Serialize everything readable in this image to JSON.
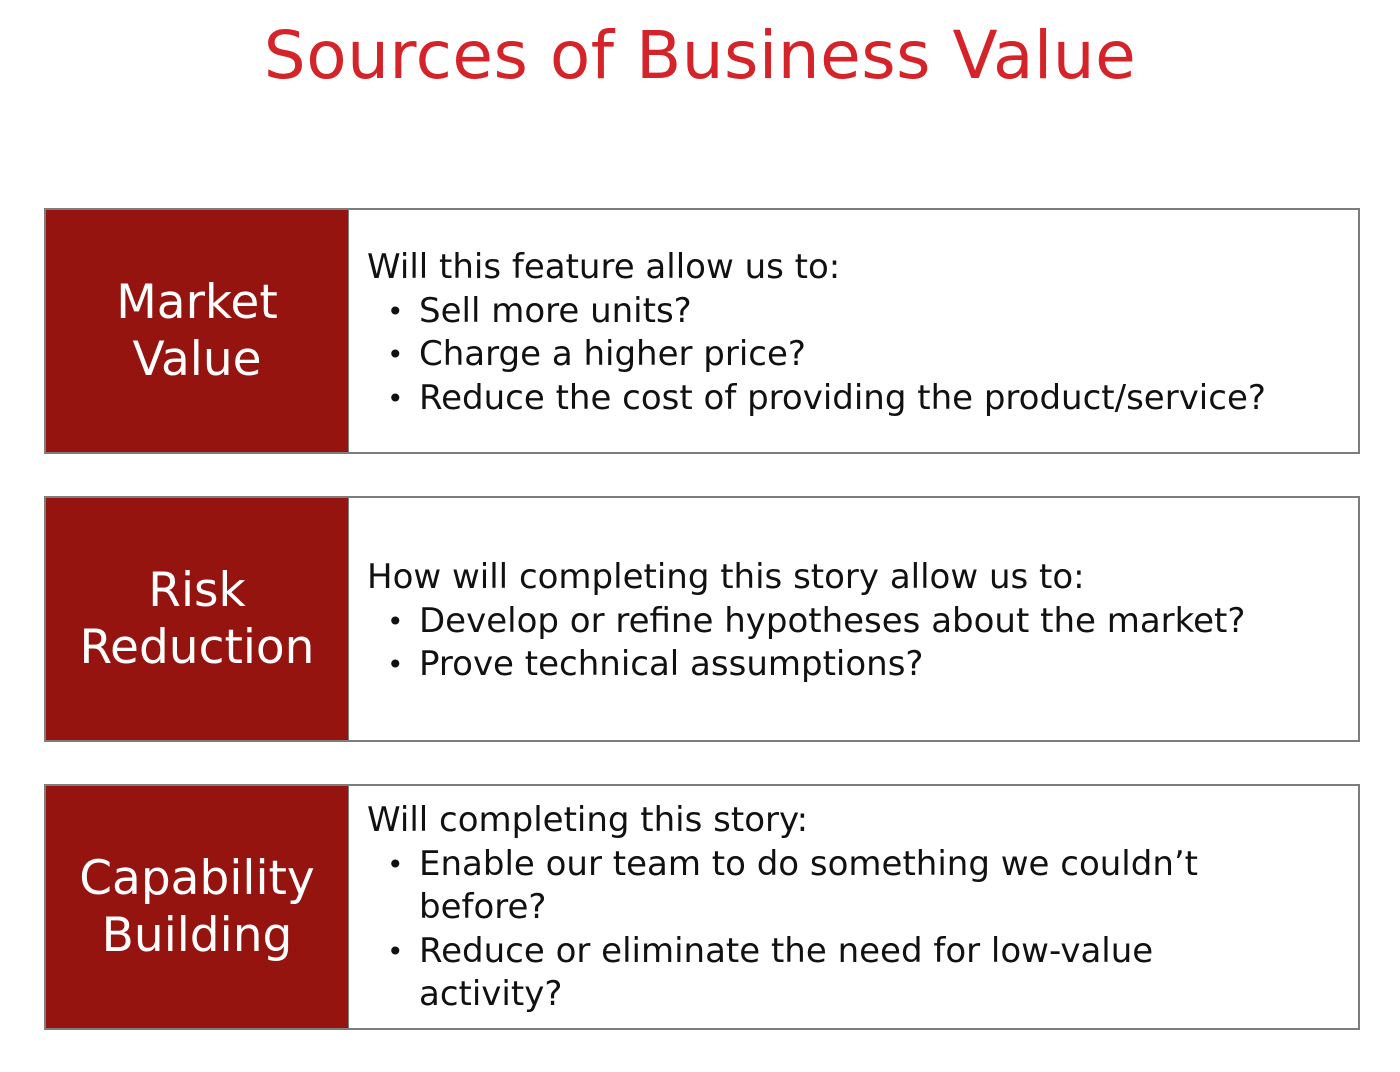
{
  "title": "Sources of Business Value",
  "colors": {
    "title": "#d5232a",
    "label_background": "#961410",
    "border": "#7d7d7d"
  },
  "rows": [
    {
      "label": "Market\nValue",
      "lead": "Will this feature allow us to:",
      "bullets": [
        "Sell more units?",
        "Charge a higher price?",
        "Reduce the cost of providing the product/service?"
      ]
    },
    {
      "label": "Risk\nReduction",
      "lead": "How will completing this story allow us to:",
      "bullets": [
        "Develop or refine hypotheses about the market?",
        "Prove technical assumptions?"
      ]
    },
    {
      "label": "Capability\nBuilding",
      "lead": "Will completing this story:",
      "bullets": [
        "Enable our team to do something we couldn’t before?",
        "Reduce or eliminate the need for low-value activity?"
      ]
    }
  ]
}
